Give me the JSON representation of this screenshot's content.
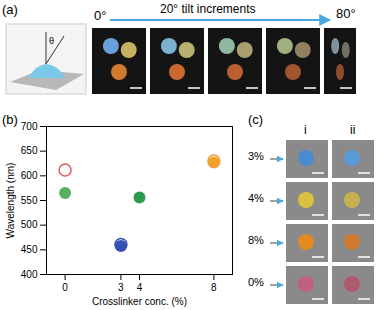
{
  "chart_data": {
    "type": "scatter",
    "title": "(b)",
    "x_label": "Crosslinker conc. (%)",
    "y_label": "Wavelength (nm)",
    "xlim": [
      -1,
      9
    ],
    "xticks": [
      0,
      3,
      4,
      8
    ],
    "ylim": [
      400,
      700
    ],
    "yticks": [
      400,
      450,
      500,
      550,
      600,
      650,
      700
    ],
    "series": [
      {
        "marker": "filled",
        "x": [
          0,
          3,
          4,
          8
        ],
        "values": [
          565,
          458,
          556,
          627
        ],
        "colors": [
          "#55b060",
          "#3450b4",
          "#2e9a4e",
          "#f2a22a"
        ]
      },
      {
        "marker": "open",
        "x": [
          0,
          3,
          8
        ],
        "values": [
          612,
          461,
          630
        ],
        "colors": [
          "#e05a5a",
          "#3450b4",
          "#e8a040"
        ]
      }
    ]
  },
  "figure": {
    "panel_a": {
      "label": "(a)",
      "angle_symbol": "θ",
      "start": "0°",
      "increment": "20° tilt increments",
      "end": "80°"
    },
    "panel_c": {
      "label": "(c)",
      "columns": [
        "i",
        "ii"
      ],
      "rows": [
        "3%",
        "4%",
        "8%",
        "0%"
      ]
    }
  }
}
